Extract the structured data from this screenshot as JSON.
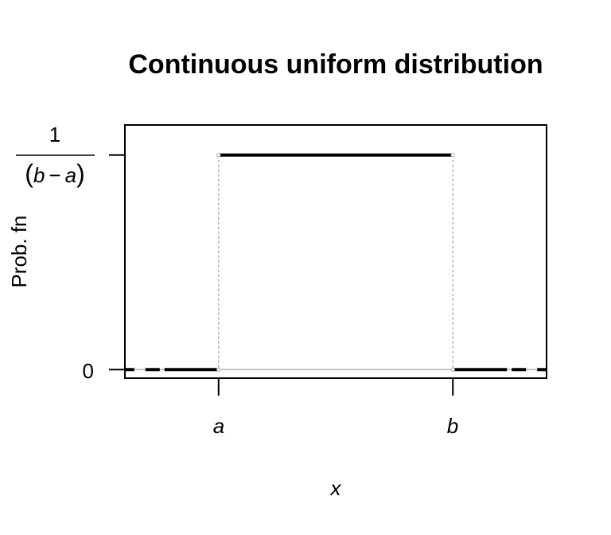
{
  "chart_data": {
    "type": "line",
    "title": "Continuous uniform distribution",
    "xlabel": "x",
    "ylabel": "Prob. fn",
    "x_ticks": [
      {
        "label": "a",
        "value": 0
      },
      {
        "label": "b",
        "value": 1
      }
    ],
    "y_ticks": [
      {
        "label": "0",
        "value": 0
      },
      {
        "label": "1/(b - a)",
        "value": 1,
        "numerator": "1",
        "denominator_open": "(",
        "denominator_b": "b",
        "denominator_minus": "−",
        "denominator_a": "a",
        "denominator_close": ")"
      }
    ],
    "xlim": [
      -0.4,
      1.4
    ],
    "ylim": [
      -0.04,
      1.14
    ],
    "series": [
      {
        "role": "density",
        "x": [
          0,
          1
        ],
        "y": [
          1,
          1
        ],
        "style": "solid"
      },
      {
        "role": "zero-left",
        "x": [
          -0.4,
          0
        ],
        "y": [
          0,
          0
        ],
        "style": "dashed"
      },
      {
        "role": "zero-right",
        "x": [
          1,
          1.4
        ],
        "y": [
          0,
          0
        ],
        "style": "dashed"
      }
    ],
    "reference_lines": [
      {
        "orientation": "horizontal",
        "y": 0,
        "color": "#aaaaaa",
        "style": "solid"
      },
      {
        "orientation": "vertical",
        "x": 0,
        "color": "#aaaaaa",
        "style": "dotted"
      },
      {
        "orientation": "vertical",
        "x": 1,
        "color": "#aaaaaa",
        "style": "dotted"
      }
    ],
    "grid": false,
    "legend": "none",
    "colors": {
      "line": "#000000",
      "reference": "#aaaaaa",
      "frame": "#000000"
    }
  }
}
